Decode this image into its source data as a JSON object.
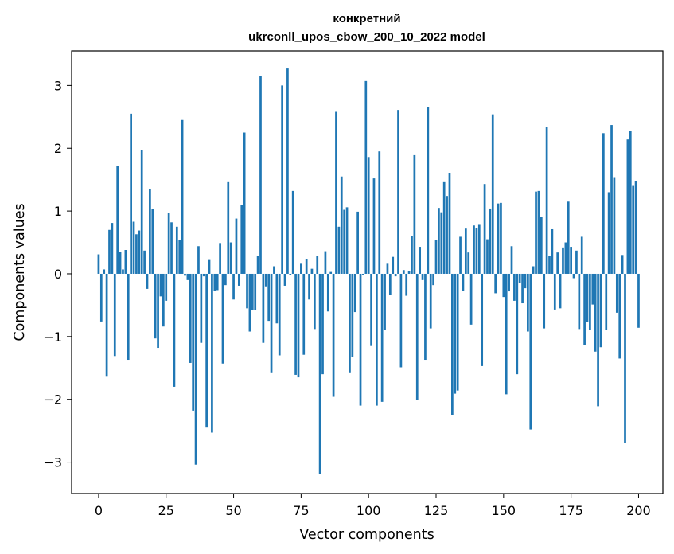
{
  "chart_data": {
    "type": "bar",
    "title_line1": "конкретний",
    "title_line2": "ukrconll_upos_cbow_200_10_2022 model",
    "xlabel": "Vector components",
    "ylabel": "Components values",
    "xlim": [
      -10,
      209
    ],
    "ylim": [
      -3.5,
      3.55
    ],
    "xticks": [
      0,
      25,
      50,
      75,
      100,
      125,
      150,
      175,
      200
    ],
    "yticks": [
      -3,
      -2,
      -1,
      0,
      1,
      2,
      3
    ],
    "ytick_labels": [
      "−3",
      "−2",
      "−1",
      "0",
      "1",
      "2",
      "3"
    ],
    "bar_color": "#1f77b4",
    "values": [
      0.31,
      -0.76,
      0.07,
      -1.64,
      0.7,
      0.81,
      -1.31,
      1.72,
      0.35,
      0.07,
      0.38,
      -1.37,
      2.55,
      0.83,
      0.63,
      0.69,
      1.97,
      0.37,
      -0.24,
      1.35,
      1.03,
      -1.03,
      -1.18,
      -0.36,
      -0.84,
      -0.43,
      0.97,
      0.82,
      -1.8,
      0.75,
      0.54,
      2.45,
      -0.03,
      -0.1,
      -1.42,
      -2.18,
      -3.04,
      0.44,
      -1.1,
      -0.04,
      -2.45,
      0.22,
      -2.53,
      -0.27,
      -0.26,
      0.49,
      -1.43,
      -0.18,
      1.46,
      0.5,
      -0.41,
      0.88,
      -0.19,
      1.09,
      2.25,
      -0.55,
      -0.92,
      -0.58,
      -0.58,
      0.29,
      3.15,
      -1.1,
      -0.2,
      -0.75,
      -1.57,
      0.12,
      -0.79,
      -1.3,
      3.0,
      -0.19,
      3.27,
      -0.02,
      1.32,
      -1.61,
      -1.65,
      0.16,
      -1.29,
      0.23,
      -0.41,
      0.08,
      -0.88,
      0.29,
      -3.19,
      -1.6,
      0.36,
      -0.6,
      0.03,
      -1.96,
      2.58,
      0.75,
      1.55,
      1.02,
      1.06,
      -1.57,
      -1.33,
      -0.61,
      0.99,
      -2.1,
      -0.02,
      3.07,
      1.86,
      -1.15,
      1.52,
      -2.1,
      1.95,
      -2.04,
      -0.89,
      0.16,
      -0.34,
      0.27,
      -0.04,
      2.61,
      -1.49,
      0.06,
      -0.35,
      0.04,
      0.6,
      1.89,
      -2.01,
      0.43,
      -0.1,
      -1.37,
      2.65,
      -0.87,
      -0.18,
      0.54,
      1.05,
      0.98,
      1.46,
      1.24,
      1.61,
      -2.25,
      -1.91,
      -1.86,
      0.59,
      -0.27,
      0.72,
      0.34,
      -0.81,
      0.77,
      0.73,
      0.78,
      -1.47,
      1.43,
      0.55,
      1.04,
      2.54,
      -0.31,
      1.12,
      1.13,
      -0.37,
      -1.92,
      -0.28,
      0.44,
      -0.43,
      -1.6,
      -0.14,
      -0.47,
      -0.23,
      -0.92,
      -2.48,
      0.12,
      1.31,
      1.32,
      0.9,
      -0.87,
      2.34,
      0.29,
      0.71,
      -0.57,
      0.34,
      -0.55,
      0.42,
      0.5,
      1.15,
      0.43,
      -0.07,
      0.37,
      -0.88,
      0.59,
      -1.13,
      -0.77,
      -0.89,
      -0.49,
      -1.24,
      -2.11,
      -1.17,
      2.24,
      -0.9,
      1.3,
      2.37,
      1.54,
      -0.62,
      -1.35,
      0.3,
      -2.69,
      2.14,
      2.27,
      1.4,
      1.48,
      -0.86
    ]
  }
}
